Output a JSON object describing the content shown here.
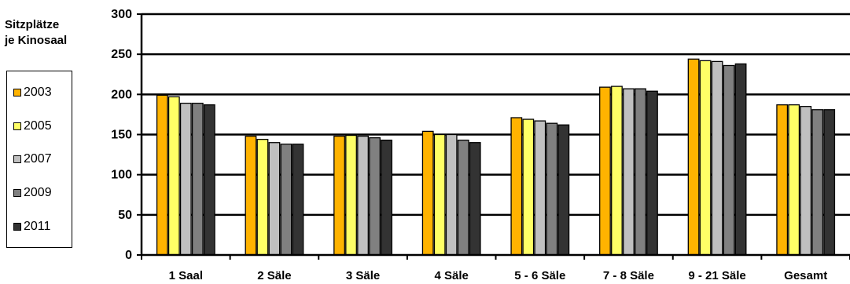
{
  "chart_data": {
    "type": "bar",
    "title": "",
    "ylabel_lines": [
      "Sitzplätze",
      "je Kinosaal"
    ],
    "xlabel": "",
    "ylim": [
      0,
      300
    ],
    "yticks": [
      0,
      50,
      100,
      150,
      200,
      250,
      300
    ],
    "grid": true,
    "legend_placement": "left",
    "categories": [
      "1 Saal",
      "2 Säle",
      "3 Säle",
      "4 Säle",
      "5 - 6 Säle",
      "7 - 8 Säle",
      "9 - 21 Säle",
      "Gesamt"
    ],
    "series": [
      {
        "name": "2003",
        "color": "#FFB300",
        "values": [
          199,
          148,
          148,
          154,
          171,
          209,
          244,
          187
        ]
      },
      {
        "name": "2005",
        "color": "#FFFF66",
        "values": [
          197,
          144,
          149,
          150,
          169,
          210,
          242,
          187
        ]
      },
      {
        "name": "2007",
        "color": "#C0C0C0",
        "values": [
          189,
          140,
          148,
          150,
          167,
          207,
          241,
          185
        ]
      },
      {
        "name": "2009",
        "color": "#808080",
        "values": [
          189,
          138,
          146,
          143,
          164,
          207,
          236,
          181
        ]
      },
      {
        "name": "2011",
        "color": "#333333",
        "values": [
          187,
          138,
          143,
          140,
          162,
          204,
          238,
          181
        ]
      }
    ]
  }
}
